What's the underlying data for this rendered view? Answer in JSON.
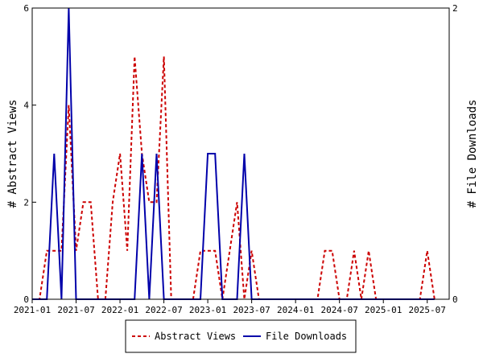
{
  "chart_data": {
    "type": "line",
    "x_ticks": [
      "2021-01",
      "2021-07",
      "2022-01",
      "2022-07",
      "2023-01",
      "2023-07",
      "2024-01",
      "2024-07",
      "2025-01",
      "2025-07"
    ],
    "y_left": {
      "label": "# Abstract Views",
      "ticks": [
        "0",
        "2",
        "4",
        "6"
      ],
      "range": [
        0,
        6
      ]
    },
    "y_right": {
      "label": "# File Downloads",
      "ticks": [
        "0",
        "2"
      ],
      "range": [
        0,
        2
      ]
    },
    "x_range": [
      "2021-01",
      "2025-10"
    ],
    "grid": false,
    "legend": {
      "placement": "bottom-center"
    },
    "series": [
      {
        "name": "Abstract Views",
        "axis": "left",
        "color": "#cc0000",
        "style": "dashed",
        "points": [
          [
            "2021-01",
            0
          ],
          [
            "2021-02",
            0
          ],
          [
            "2021-03",
            1
          ],
          [
            "2021-04",
            1
          ],
          [
            "2021-05",
            1
          ],
          [
            "2021-06",
            4
          ],
          [
            "2021-07",
            1
          ],
          [
            "2021-08",
            2
          ],
          [
            "2021-09",
            2
          ],
          [
            "2021-10",
            0
          ],
          [
            "2021-11",
            0
          ],
          [
            "2021-12",
            2
          ],
          [
            "2022-01",
            3
          ],
          [
            "2022-02",
            1
          ],
          [
            "2022-03",
            5
          ],
          [
            "2022-04",
            3
          ],
          [
            "2022-05",
            2
          ],
          [
            "2022-06",
            2
          ],
          [
            "2022-07",
            5
          ],
          [
            "2022-08",
            0
          ],
          [
            "2022-09",
            0
          ],
          [
            "2022-10",
            0
          ],
          [
            "2022-11",
            0
          ],
          [
            "2022-12",
            1
          ],
          [
            "2023-01",
            1
          ],
          [
            "2023-02",
            1
          ],
          [
            "2023-03",
            0
          ],
          [
            "2023-04",
            1
          ],
          [
            "2023-05",
            2
          ],
          [
            "2023-06",
            0
          ],
          [
            "2023-07",
            1
          ],
          [
            "2023-08",
            0
          ],
          [
            "2023-09",
            0
          ],
          [
            "2023-10",
            0
          ],
          [
            "2023-11",
            0
          ],
          [
            "2023-12",
            0
          ],
          [
            "2024-01",
            0
          ],
          [
            "2024-02",
            0
          ],
          [
            "2024-03",
            0
          ],
          [
            "2024-04",
            0
          ],
          [
            "2024-05",
            1
          ],
          [
            "2024-06",
            1
          ],
          [
            "2024-07",
            0
          ],
          [
            "2024-08",
            0
          ],
          [
            "2024-09",
            1
          ],
          [
            "2024-10",
            0
          ],
          [
            "2024-11",
            1
          ],
          [
            "2024-12",
            0
          ],
          [
            "2025-01",
            0
          ],
          [
            "2025-02",
            0
          ],
          [
            "2025-03",
            0
          ],
          [
            "2025-04",
            0
          ],
          [
            "2025-05",
            0
          ],
          [
            "2025-06",
            0
          ],
          [
            "2025-07",
            1
          ],
          [
            "2025-08",
            0
          ]
        ]
      },
      {
        "name": "File Downloads",
        "axis": "right",
        "color": "#0000aa",
        "style": "solid",
        "points": [
          [
            "2021-01",
            0
          ],
          [
            "2021-02",
            0
          ],
          [
            "2021-03",
            0
          ],
          [
            "2021-04",
            1
          ],
          [
            "2021-05",
            0
          ],
          [
            "2021-06",
            2
          ],
          [
            "2021-07",
            0
          ],
          [
            "2021-08",
            0
          ],
          [
            "2021-09",
            0
          ],
          [
            "2021-10",
            0
          ],
          [
            "2021-11",
            0
          ],
          [
            "2021-12",
            0
          ],
          [
            "2022-01",
            0
          ],
          [
            "2022-02",
            0
          ],
          [
            "2022-03",
            0
          ],
          [
            "2022-04",
            1
          ],
          [
            "2022-05",
            0
          ],
          [
            "2022-06",
            1
          ],
          [
            "2022-07",
            0
          ],
          [
            "2022-08",
            0
          ],
          [
            "2022-09",
            0
          ],
          [
            "2022-10",
            0
          ],
          [
            "2022-11",
            0
          ],
          [
            "2022-12",
            0
          ],
          [
            "2023-01",
            1
          ],
          [
            "2023-02",
            1
          ],
          [
            "2023-03",
            0
          ],
          [
            "2023-04",
            0
          ],
          [
            "2023-05",
            0
          ],
          [
            "2023-06",
            1
          ],
          [
            "2023-07",
            0
          ],
          [
            "2023-08",
            0
          ],
          [
            "2023-09",
            0
          ],
          [
            "2023-10",
            0
          ],
          [
            "2023-11",
            0
          ],
          [
            "2023-12",
            0
          ],
          [
            "2024-01",
            0
          ],
          [
            "2024-02",
            0
          ],
          [
            "2024-03",
            0
          ],
          [
            "2024-04",
            0
          ],
          [
            "2024-05",
            0
          ],
          [
            "2024-06",
            0
          ],
          [
            "2024-07",
            0
          ],
          [
            "2024-08",
            0
          ],
          [
            "2024-09",
            0
          ],
          [
            "2024-10",
            0
          ],
          [
            "2024-11",
            0
          ],
          [
            "2024-12",
            0
          ],
          [
            "2025-01",
            0
          ],
          [
            "2025-02",
            0
          ],
          [
            "2025-03",
            0
          ],
          [
            "2025-04",
            0
          ],
          [
            "2025-05",
            0
          ],
          [
            "2025-06",
            0
          ],
          [
            "2025-07",
            0
          ],
          [
            "2025-08",
            0
          ]
        ]
      }
    ]
  }
}
